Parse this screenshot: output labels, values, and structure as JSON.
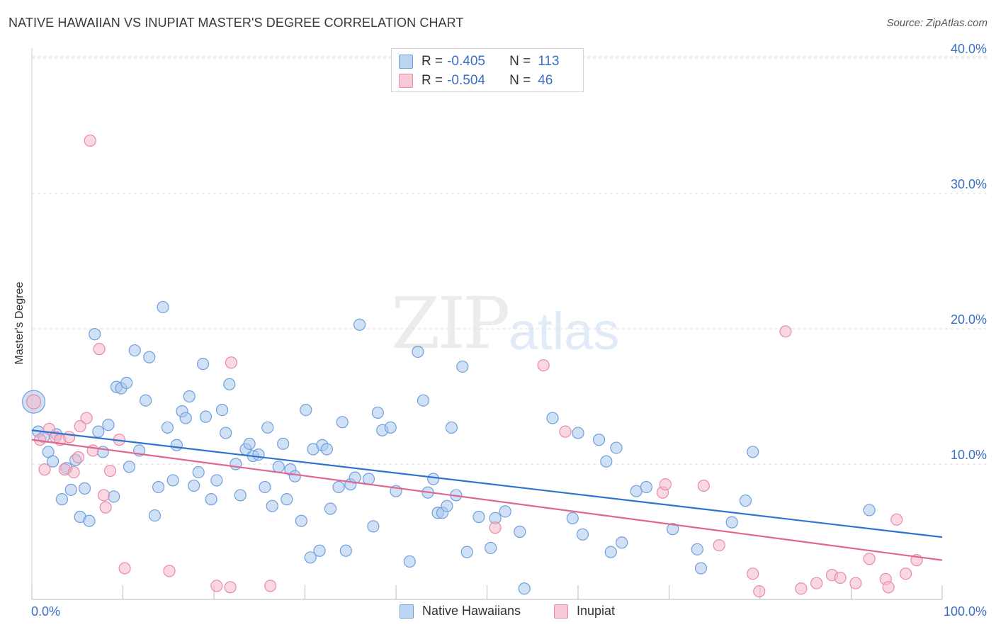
{
  "title": "NATIVE HAWAIIAN VS INUPIAT MASTER'S DEGREE CORRELATION CHART",
  "source": "Source: ZipAtlas.com",
  "watermark": {
    "zip": "ZIP",
    "atlas": "atlas"
  },
  "legend_top": [
    {
      "r_label": "R =",
      "r_value": "-0.405",
      "n_label": "N =",
      "n_value": "113"
    },
    {
      "r_label": "R =",
      "r_value": "-0.504",
      "n_label": "N =",
      "n_value": "46"
    }
  ],
  "legend_bottom": [
    {
      "label": "Native Hawaiians"
    },
    {
      "label": "Inupiat"
    }
  ],
  "colors": {
    "blue_fill": "#a9c8ef",
    "blue_stroke": "#6f9fdc",
    "blue_line": "#2f73d0",
    "pink_fill": "#f5b8cb",
    "pink_stroke": "#e98aa8",
    "pink_line": "#e06691",
    "tick_text": "#3b6fc4",
    "grid": "#dddddd"
  },
  "chart_data": {
    "type": "scatter",
    "title": "NATIVE HAWAIIAN VS INUPIAT MASTER'S DEGREE CORRELATION CHART",
    "xlabel": "",
    "ylabel": "Master's Degree",
    "xlim": [
      0,
      100
    ],
    "ylim": [
      0,
      42
    ],
    "x_tick_labels": [
      "0.0%",
      "100.0%"
    ],
    "y_ticks": [
      10,
      20,
      30,
      40
    ],
    "y_tick_labels": [
      "10.0%",
      "20.0%",
      "30.0%",
      "40.0%"
    ],
    "series": [
      {
        "name": "Native Hawaiians",
        "r": -0.405,
        "n": 113,
        "trend": {
          "x": [
            0,
            100
          ],
          "y": [
            12.5,
            4.6
          ]
        },
        "points": [
          [
            0.2,
            14.6
          ],
          [
            0.7,
            12.4
          ],
          [
            1.3,
            12.0
          ],
          [
            1.8,
            10.9
          ],
          [
            2.3,
            10.2
          ],
          [
            2.7,
            12.2
          ],
          [
            3.3,
            7.4
          ],
          [
            3.8,
            9.7
          ],
          [
            4.3,
            8.1
          ],
          [
            4.8,
            10.3
          ],
          [
            5.3,
            6.1
          ],
          [
            5.8,
            8.2
          ],
          [
            6.3,
            5.8
          ],
          [
            6.9,
            19.6
          ],
          [
            7.3,
            12.4
          ],
          [
            7.8,
            10.9
          ],
          [
            8.4,
            12.9
          ],
          [
            9.0,
            7.6
          ],
          [
            9.3,
            15.7
          ],
          [
            9.8,
            15.6
          ],
          [
            10.4,
            16.0
          ],
          [
            10.7,
            9.8
          ],
          [
            11.3,
            18.4
          ],
          [
            11.8,
            11.0
          ],
          [
            12.5,
            14.7
          ],
          [
            12.9,
            17.9
          ],
          [
            13.5,
            6.2
          ],
          [
            13.9,
            8.3
          ],
          [
            14.4,
            21.6
          ],
          [
            14.9,
            12.7
          ],
          [
            15.5,
            8.8
          ],
          [
            15.9,
            11.4
          ],
          [
            16.5,
            13.9
          ],
          [
            16.9,
            13.4
          ],
          [
            17.3,
            15.0
          ],
          [
            17.8,
            8.4
          ],
          [
            18.3,
            9.4
          ],
          [
            18.8,
            17.4
          ],
          [
            19.1,
            13.5
          ],
          [
            19.7,
            7.4
          ],
          [
            20.3,
            8.8
          ],
          [
            20.9,
            14.0
          ],
          [
            21.3,
            12.3
          ],
          [
            21.7,
            15.9
          ],
          [
            22.4,
            10.0
          ],
          [
            22.9,
            7.7
          ],
          [
            23.5,
            11.1
          ],
          [
            23.9,
            11.5
          ],
          [
            24.3,
            10.6
          ],
          [
            24.9,
            10.7
          ],
          [
            25.6,
            8.3
          ],
          [
            25.9,
            12.7
          ],
          [
            26.4,
            6.9
          ],
          [
            27.1,
            9.8
          ],
          [
            27.6,
            11.5
          ],
          [
            28.0,
            7.4
          ],
          [
            28.4,
            9.6
          ],
          [
            28.9,
            9.1
          ],
          [
            29.6,
            5.8
          ],
          [
            30.1,
            14.0
          ],
          [
            30.6,
            3.1
          ],
          [
            30.9,
            11.1
          ],
          [
            31.6,
            3.6
          ],
          [
            31.9,
            11.4
          ],
          [
            32.4,
            11.1
          ],
          [
            32.8,
            6.7
          ],
          [
            33.7,
            8.3
          ],
          [
            34.1,
            13.1
          ],
          [
            34.5,
            3.6
          ],
          [
            35.0,
            8.5
          ],
          [
            35.5,
            9.0
          ],
          [
            36.0,
            20.3
          ],
          [
            37.0,
            8.9
          ],
          [
            37.5,
            5.4
          ],
          [
            38.0,
            13.8
          ],
          [
            38.5,
            12.5
          ],
          [
            39.4,
            12.7
          ],
          [
            40.0,
            8.0
          ],
          [
            41.5,
            2.8
          ],
          [
            42.4,
            18.3
          ],
          [
            43.0,
            14.7
          ],
          [
            43.5,
            7.9
          ],
          [
            44.1,
            8.9
          ],
          [
            44.6,
            6.4
          ],
          [
            45.1,
            6.4
          ],
          [
            45.6,
            6.9
          ],
          [
            46.1,
            12.7
          ],
          [
            46.6,
            7.7
          ],
          [
            47.3,
            17.2
          ],
          [
            47.8,
            3.5
          ],
          [
            49.1,
            6.1
          ],
          [
            50.4,
            3.8
          ],
          [
            50.9,
            6.0
          ],
          [
            52.0,
            6.5
          ],
          [
            53.6,
            5.0
          ],
          [
            54.1,
            0.8
          ],
          [
            57.2,
            13.4
          ],
          [
            59.4,
            6.0
          ],
          [
            60.0,
            12.3
          ],
          [
            60.5,
            4.8
          ],
          [
            62.3,
            11.8
          ],
          [
            63.1,
            10.2
          ],
          [
            63.6,
            3.5
          ],
          [
            64.2,
            11.2
          ],
          [
            64.8,
            4.2
          ],
          [
            66.4,
            8.0
          ],
          [
            67.5,
            8.3
          ],
          [
            70.4,
            5.2
          ],
          [
            73.1,
            3.7
          ],
          [
            73.5,
            2.3
          ],
          [
            76.9,
            5.7
          ],
          [
            78.4,
            7.3
          ],
          [
            79.2,
            10.9
          ],
          [
            92.0,
            6.6
          ]
        ]
      },
      {
        "name": "Inupiat",
        "r": -0.504,
        "n": 46,
        "trend": {
          "x": [
            0,
            100
          ],
          "y": [
            11.8,
            2.9
          ]
        },
        "points": [
          [
            0.2,
            14.6
          ],
          [
            0.9,
            11.8
          ],
          [
            1.4,
            9.6
          ],
          [
            1.9,
            12.6
          ],
          [
            2.6,
            12.0
          ],
          [
            3.1,
            11.8
          ],
          [
            3.6,
            9.6
          ],
          [
            4.1,
            12.0
          ],
          [
            4.6,
            9.4
          ],
          [
            5.1,
            10.5
          ],
          [
            5.3,
            12.8
          ],
          [
            6.0,
            13.4
          ],
          [
            6.4,
            33.9
          ],
          [
            6.7,
            11.0
          ],
          [
            7.4,
            18.5
          ],
          [
            7.9,
            7.7
          ],
          [
            8.1,
            6.8
          ],
          [
            8.6,
            9.5
          ],
          [
            9.6,
            11.8
          ],
          [
            10.2,
            2.3
          ],
          [
            15.1,
            2.1
          ],
          [
            20.3,
            1.0
          ],
          [
            21.8,
            0.9
          ],
          [
            21.9,
            17.5
          ],
          [
            26.2,
            1.0
          ],
          [
            50.9,
            5.3
          ],
          [
            56.2,
            17.3
          ],
          [
            58.6,
            12.4
          ],
          [
            69.3,
            7.9
          ],
          [
            69.6,
            8.5
          ],
          [
            73.8,
            8.4
          ],
          [
            75.5,
            4.0
          ],
          [
            79.2,
            1.9
          ],
          [
            79.9,
            0.6
          ],
          [
            82.8,
            19.8
          ],
          [
            84.5,
            0.8
          ],
          [
            86.2,
            1.2
          ],
          [
            87.9,
            1.8
          ],
          [
            88.8,
            1.6
          ],
          [
            90.5,
            1.2
          ],
          [
            92.0,
            3.0
          ],
          [
            93.8,
            1.5
          ],
          [
            94.1,
            0.9
          ],
          [
            95.0,
            5.9
          ],
          [
            96.0,
            1.9
          ],
          [
            97.2,
            2.9
          ]
        ]
      }
    ]
  }
}
